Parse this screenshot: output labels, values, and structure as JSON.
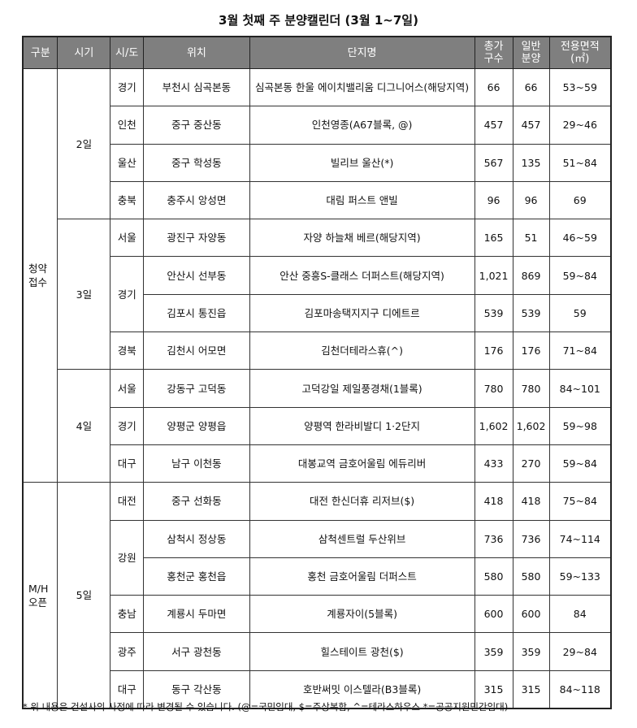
{
  "title": "3월 첫째 주 분양캘린더 (3월 1~7일)",
  "headers": [
    "구분",
    "시기",
    "시/도",
    "위치",
    "단지명",
    "총가\n구수",
    "일반\n분양",
    "전용면적\n(㎡)"
  ],
  "groups": {
    "g1": "청약\n접수",
    "g2": "M/H\n오픈"
  },
  "days": {
    "d2": "2일",
    "d3": "3일",
    "d4": "4일",
    "d5": "5일"
  },
  "rows": [
    {
      "sido": "경기",
      "loc": "부천시 심곡본동",
      "name": "심곡본동 한울 에이치밸리움 디그니어스(해당지역)",
      "total": "66",
      "general": "66",
      "area": "53~59"
    },
    {
      "sido": "인천",
      "loc": "중구 중산동",
      "name": "인천영종(A67블록, @)",
      "total": "457",
      "general": "457",
      "area": "29~46"
    },
    {
      "sido": "울산",
      "loc": "중구 학성동",
      "name": "빌리브 울산(*)",
      "total": "567",
      "general": "135",
      "area": "51~84"
    },
    {
      "sido": "충북",
      "loc": "충주시 앙성면",
      "name": "대림 퍼스트 앤빌",
      "total": "96",
      "general": "96",
      "area": "69"
    },
    {
      "sido": "서울",
      "loc": "광진구 자양동",
      "name": "자양 하늘채 베르(해당지역)",
      "total": "165",
      "general": "51",
      "area": "46~59"
    },
    {
      "sido": "경기",
      "loc": "안산시 선부동",
      "name": "안산 중흥S-클래스 더퍼스트(해당지역)",
      "total": "1,021",
      "general": "869",
      "area": "59~84"
    },
    {
      "sido": "",
      "loc": "김포시 통진읍",
      "name": "김포마송택지지구 디에트르",
      "total": "539",
      "general": "539",
      "area": "59"
    },
    {
      "sido": "경북",
      "loc": "김천시 어모면",
      "name": "김천더테라스휴(^)",
      "total": "176",
      "general": "176",
      "area": "71~84"
    },
    {
      "sido": "서울",
      "loc": "강동구 고덕동",
      "name": "고덕강일 제일풍경채(1블록)",
      "total": "780",
      "general": "780",
      "area": "84~101"
    },
    {
      "sido": "경기",
      "loc": "양평군 양평읍",
      "name": "양평역 한라비발디 1·2단지",
      "total": "1,602",
      "general": "1,602",
      "area": "59~98"
    },
    {
      "sido": "대구",
      "loc": "남구 이천동",
      "name": "대봉교역 금호어울림 에듀리버",
      "total": "433",
      "general": "270",
      "area": "59~84"
    },
    {
      "sido": "대전",
      "loc": "중구 선화동",
      "name": "대전 한신더휴 리저브($)",
      "total": "418",
      "general": "418",
      "area": "75~84"
    },
    {
      "sido": "강원",
      "loc": "삼척시 정상동",
      "name": "삼척센트럴 두산위브",
      "total": "736",
      "general": "736",
      "area": "74~114"
    },
    {
      "sido": "",
      "loc": "홍천군 홍천읍",
      "name": "홍천 금호어울림 더퍼스트",
      "total": "580",
      "general": "580",
      "area": "59~133"
    },
    {
      "sido": "충남",
      "loc": "계룡시 두마면",
      "name": "계룡자이(5블록)",
      "total": "600",
      "general": "600",
      "area": "84"
    },
    {
      "sido": "광주",
      "loc": "서구 광천동",
      "name": "힐스테이트 광천($)",
      "total": "359",
      "general": "359",
      "area": "29~84"
    },
    {
      "sido": "대구",
      "loc": "동구 각산동",
      "name": "호반써밋 이스텔라(B3블록)",
      "total": "315",
      "general": "315",
      "area": "84~118"
    }
  ],
  "note": "* 위 내용은 건설사의 사정에 따라 변경될 수 있습니다. (@=국민임대, $=주상복합, ^=테라스하우스 *=공공지원민간임대)"
}
